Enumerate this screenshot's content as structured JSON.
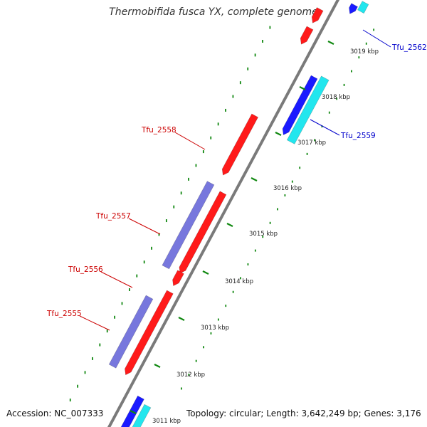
{
  "title": "Thermobifida fusca YX, complete genome",
  "footer": {
    "accession": "Accession: NC_007333",
    "summary": "Topology: circular; Length: 3,642,249 bp; Genes: 3,176"
  },
  "colors": {
    "backbone": "#7a7a7a",
    "forward_cds": "#ff1a1a",
    "forward_other": "#7777dd",
    "reverse_cds": "#1a1aff",
    "reverse_other": "#22e6ee",
    "tick": "#118811",
    "label_forward": "#cc0000",
    "label_reverse": "#0000cc"
  },
  "ticks": [
    {
      "label": "3011 kbp"
    },
    {
      "label": "3012 kbp"
    },
    {
      "label": "3013 kbp"
    },
    {
      "label": "3014 kbp"
    },
    {
      "label": "3015 kbp"
    },
    {
      "label": "3016 kbp"
    },
    {
      "label": "3017 kbp"
    },
    {
      "label": "3018 kbp"
    },
    {
      "label": "3019 kbp"
    }
  ],
  "gene_labels": [
    {
      "text": "Tfu_2555",
      "strand": "forward"
    },
    {
      "text": "Tfu_2556",
      "strand": "forward"
    },
    {
      "text": "Tfu_2557",
      "strand": "forward"
    },
    {
      "text": "Tfu_2558",
      "strand": "forward"
    },
    {
      "text": "Tfu_2559",
      "strand": "reverse"
    },
    {
      "text": "Tfu_2562",
      "strand": "reverse"
    }
  ]
}
